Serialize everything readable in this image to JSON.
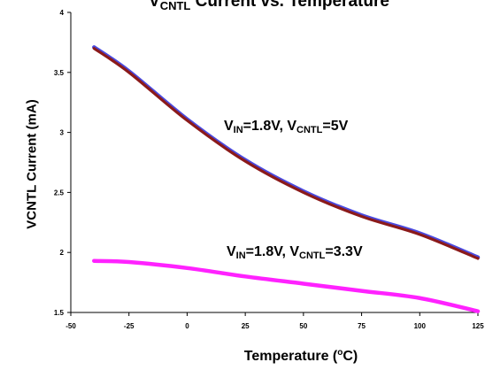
{
  "chart_data": {
    "type": "line",
    "title": {
      "main": "V",
      "sub": "CNTL",
      "rest": " Current vs. Temperature"
    },
    "xlabel": {
      "pre": "Temperature (",
      "sup": "o",
      "post": "C)"
    },
    "ylabel": "VCNTL Current (mA)",
    "xlim": [
      -50,
      125
    ],
    "ylim": [
      1.5,
      4
    ],
    "x_ticks": [
      "-50",
      "-25",
      "0",
      "25",
      "50",
      "75",
      "100",
      "125"
    ],
    "y_ticks": [
      "1.5",
      "2",
      "2.5",
      "3",
      "3.5",
      "4"
    ],
    "grid": false,
    "x": [
      -40,
      -25,
      0,
      25,
      50,
      75,
      100,
      125
    ],
    "series": [
      {
        "values": [
          3.7,
          3.5,
          3.1,
          2.76,
          2.5,
          2.3,
          2.15,
          1.95
        ],
        "color": "#8b1a1a",
        "highlight": "#4a4ae0"
      },
      {
        "values": [
          1.93,
          1.92,
          1.87,
          1.8,
          1.74,
          1.68,
          1.62,
          1.51
        ],
        "color": "#ff22ff"
      }
    ],
    "annotations": [
      {
        "pre": "V",
        "sub1": "IN",
        "mid": "=1.8V, V",
        "sub2": "CNTL",
        "post": "=5V"
      },
      {
        "pre": "V",
        "sub1": "IN",
        "mid": "=1.8V, V",
        "sub2": "CNTL",
        "post": "=3.3V"
      }
    ]
  }
}
